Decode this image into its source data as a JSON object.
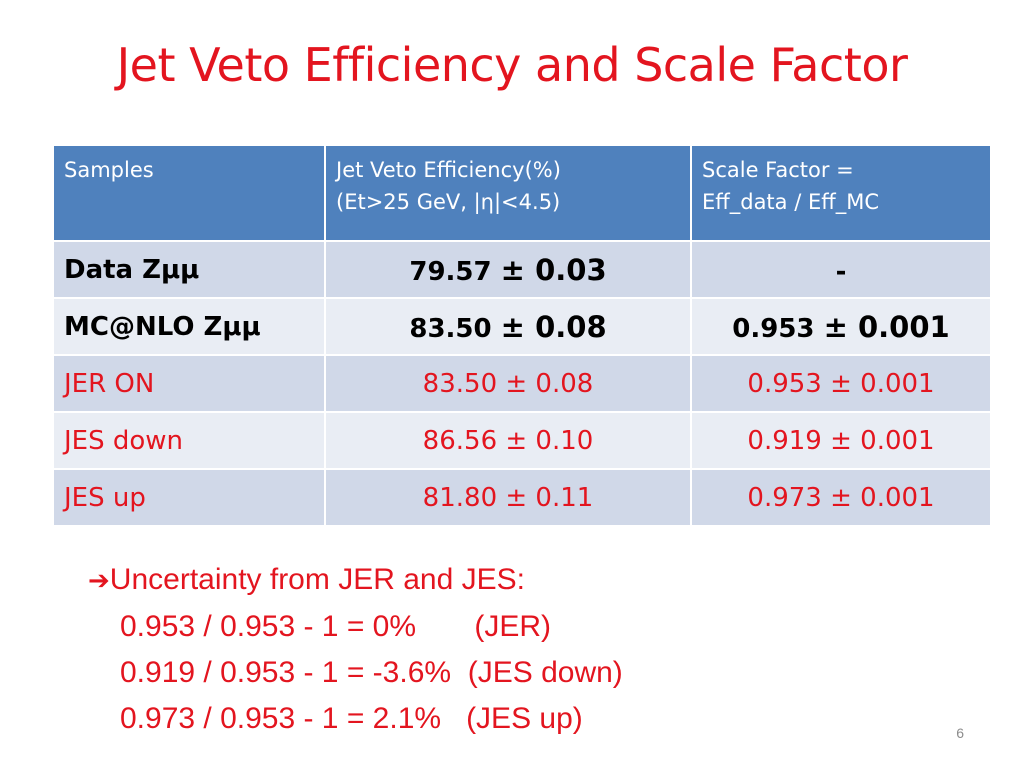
{
  "title": "Jet Veto Efficiency and Scale Factor",
  "table": {
    "headers": [
      [
        "Samples"
      ],
      [
        "Jet Veto Efficiency(%)",
        "(Et>25 GeV, |η|<4.5)"
      ],
      [
        "Scale Factor =",
        "Eff_data / Eff_MC"
      ]
    ],
    "rows": [
      {
        "sample": "Data Zμμ",
        "eff": "79.57",
        "eff_unc": "± 0.03",
        "sf": "-",
        "sf_unc": ""
      },
      {
        "sample": "MC@NLO Zμμ",
        "eff": "83.50",
        "eff_unc": "± 0.08",
        "sf": "0.953",
        "sf_unc": "± 0.001"
      },
      {
        "sample": "JER ON",
        "eff": "83.50",
        "eff_unc": "± 0.08",
        "sf": "0.953",
        "sf_unc": "± 0.001"
      },
      {
        "sample": "JES down",
        "eff": "86.56",
        "eff_unc": "± 0.10",
        "sf": "0.919",
        "sf_unc": "± 0.001"
      },
      {
        "sample": "JES up",
        "eff": "81.80",
        "eff_unc": "± 0.11",
        "sf": "0.973",
        "sf_unc": "± 0.001"
      }
    ]
  },
  "notes": {
    "arrow_icon": "➔",
    "heading": "Uncertainty from JER and JES:",
    "lines": [
      "0.953 / 0.953 - 1 = 0%       (JER)",
      "0.919 / 0.953 - 1 = -3.6%  (JES down)",
      "0.973 / 0.953 - 1 = 2.1%   (JES up)"
    ]
  },
  "page_number": "6",
  "colors": {
    "title": "#e3151f",
    "header_bg": "#4f81bd",
    "row_dark": "#d0d8e8",
    "row_light": "#e9edf4",
    "notes": "#e3151f"
  }
}
